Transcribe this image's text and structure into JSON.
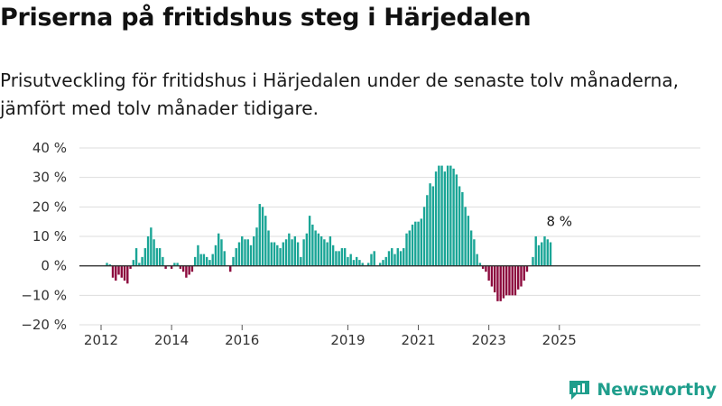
{
  "title": "Priserna på fritidshus steg i Härjedalen",
  "subtitle": "Prisutveckling för fritidshus i Härjedalen under de senaste tolv månaderna, jämfört med tolv månader tidigare.",
  "brand": {
    "name": "Newsworthy",
    "icon": "newsworthy-logo-icon",
    "color": "#1f9e8c"
  },
  "colors": {
    "positive": "#1aa596",
    "negative": "#8c0a3d",
    "grid": "#dddddd",
    "zero_line": "#333333"
  },
  "chart_data": {
    "type": "bar",
    "title": "",
    "xlabel": "",
    "ylabel": "",
    "ylim": [
      -20,
      40
    ],
    "grid": true,
    "legend": "none",
    "y_ticks": [
      -20,
      -10,
      0,
      10,
      20,
      30,
      40
    ],
    "y_tick_labels": [
      "−20 %",
      "−10 %",
      "0 %",
      "10 %",
      "20 %",
      "30 %",
      "40 %"
    ],
    "x_ticks": [
      2012,
      2014,
      2016,
      2019,
      2021,
      2023,
      2025
    ],
    "x_tick_labels": [
      "2012",
      "2014",
      "2016",
      "2019",
      "2021",
      "2023",
      "2025"
    ],
    "x_start": "2012-01",
    "frequency": "monthly",
    "annotation": {
      "x": "2025-01",
      "label": "8 %"
    },
    "values": [
      0,
      0,
      1,
      0.5,
      -4,
      -5,
      -3,
      -4,
      -5,
      -6,
      -1,
      2,
      6,
      1,
      3,
      6,
      10,
      13,
      9,
      6,
      6,
      3,
      -1,
      0,
      -1,
      1,
      1,
      -1,
      -2,
      -4,
      -3,
      -2,
      3,
      7,
      4,
      4,
      3,
      2,
      4,
      7,
      11,
      9,
      5,
      0,
      -2,
      3,
      6,
      8,
      10,
      9,
      9,
      7,
      10,
      13,
      21,
      20,
      17,
      12,
      8,
      8,
      7,
      6,
      8,
      9,
      11,
      9,
      10,
      8,
      3,
      9,
      11,
      17,
      14,
      12,
      11,
      10,
      9,
      8,
      10,
      7,
      5,
      5,
      6,
      6,
      3,
      4,
      2,
      3,
      2,
      1,
      0,
      1,
      4,
      5,
      0,
      1,
      2,
      3,
      5,
      6,
      4,
      6,
      5,
      6,
      11,
      12,
      14,
      15,
      15,
      16,
      20,
      24,
      28,
      27,
      32,
      34,
      34,
      32,
      34,
      34,
      33,
      31,
      27,
      25,
      20,
      17,
      12,
      9,
      4,
      1,
      -1,
      -2,
      -5,
      -7,
      -9,
      -12,
      -12,
      -11,
      -10,
      -10,
      -10,
      -10,
      -8,
      -7,
      -5,
      -2,
      0,
      3,
      10,
      7,
      8,
      10,
      9,
      8
    ]
  }
}
